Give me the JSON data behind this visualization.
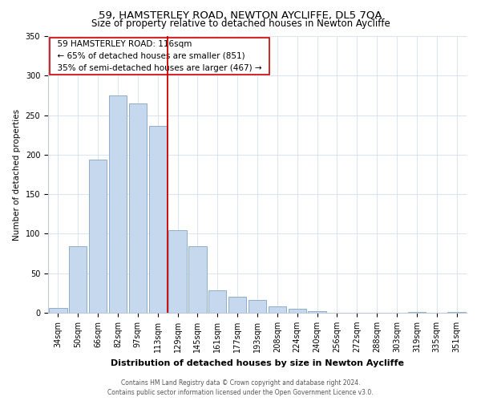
{
  "title": "59, HAMSTERLEY ROAD, NEWTON AYCLIFFE, DL5 7QA",
  "subtitle": "Size of property relative to detached houses in Newton Aycliffe",
  "xlabel": "Distribution of detached houses by size in Newton Aycliffe",
  "ylabel": "Number of detached properties",
  "footer_line1": "Contains HM Land Registry data © Crown copyright and database right 2024.",
  "footer_line2": "Contains public sector information licensed under the Open Government Licence v3.0.",
  "bar_labels": [
    "34sqm",
    "50sqm",
    "66sqm",
    "82sqm",
    "97sqm",
    "113sqm",
    "129sqm",
    "145sqm",
    "161sqm",
    "177sqm",
    "193sqm",
    "208sqm",
    "224sqm",
    "240sqm",
    "256sqm",
    "272sqm",
    "288sqm",
    "303sqm",
    "319sqm",
    "335sqm",
    "351sqm"
  ],
  "bar_values": [
    6,
    84,
    194,
    275,
    265,
    236,
    105,
    84,
    28,
    20,
    16,
    8,
    5,
    2,
    0,
    0,
    0,
    0,
    1,
    0,
    1
  ],
  "bar_color": "#c5d8ee",
  "bar_edge_color": "#90aec8",
  "vline_x": 5.5,
  "vline_color": "#cc0000",
  "annotation_title": "59 HAMSTERLEY ROAD: 116sqm",
  "annotation_line1": "← 65% of detached houses are smaller (851)",
  "annotation_line2": "35% of semi-detached houses are larger (467) →",
  "annotation_box_edge": "#cc0000",
  "ylim": [
    0,
    350
  ],
  "yticks": [
    0,
    50,
    100,
    150,
    200,
    250,
    300,
    350
  ],
  "title_fontsize": 9.5,
  "subtitle_fontsize": 8.5,
  "xlabel_fontsize": 8,
  "ylabel_fontsize": 7.5,
  "tick_fontsize": 7,
  "annotation_fontsize": 7.5,
  "footer_fontsize": 5.5
}
